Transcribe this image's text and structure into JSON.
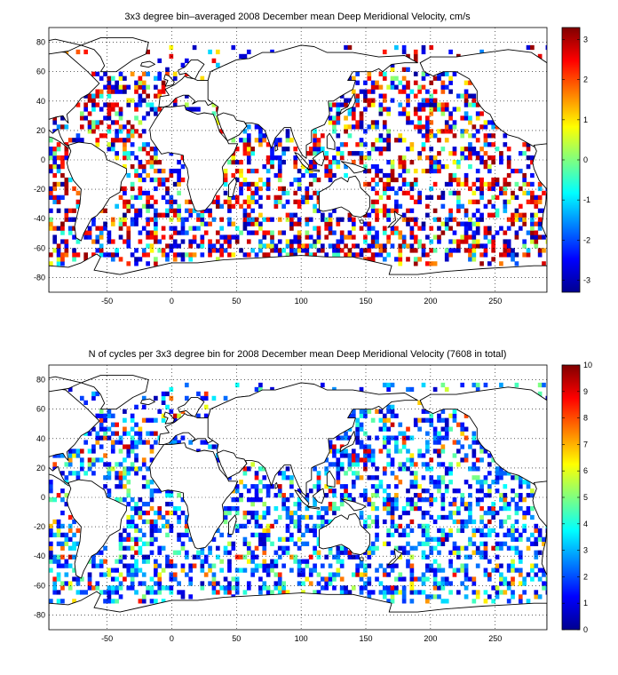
{
  "panels": [
    {
      "id": "velocity",
      "title": "3x3 degree bin–averaged 2008 December mean Deep Meridional Velocity, cm/s",
      "x_ticks": [
        "-50",
        "0",
        "50",
        "100",
        "150",
        "200",
        "250"
      ],
      "y_ticks": [
        "80",
        "60",
        "40",
        "20",
        "0",
        "-20",
        "-40",
        "-60",
        "-80"
      ],
      "colorbar_ticks": [
        "3",
        "2",
        "1",
        "0",
        "-1",
        "-2",
        "-3"
      ],
      "colorbar_range": [
        -3.3,
        3.3
      ],
      "colormap": "jet",
      "pattern": "diverging"
    },
    {
      "id": "cycles",
      "title": "N of cycles per 3x3 degree bin for 2008 December mean Deep Meridional Velocity (7608 in total)",
      "x_ticks": [
        "-50",
        "0",
        "50",
        "100",
        "150",
        "200",
        "250"
      ],
      "y_ticks": [
        "80",
        "60",
        "40",
        "20",
        "0",
        "-20",
        "-40",
        "-60",
        "-80"
      ],
      "colorbar_ticks": [
        "10",
        "9",
        "8",
        "7",
        "6",
        "5",
        "4",
        "3",
        "2",
        "1",
        "0"
      ],
      "colorbar_range": [
        0,
        10
      ],
      "colormap": "jet",
      "pattern": "counts"
    }
  ],
  "map": {
    "lon_range": [
      -95,
      290
    ],
    "lat_range": [
      -90,
      90
    ],
    "grid": "dotted",
    "bin_size_deg": 3
  }
}
